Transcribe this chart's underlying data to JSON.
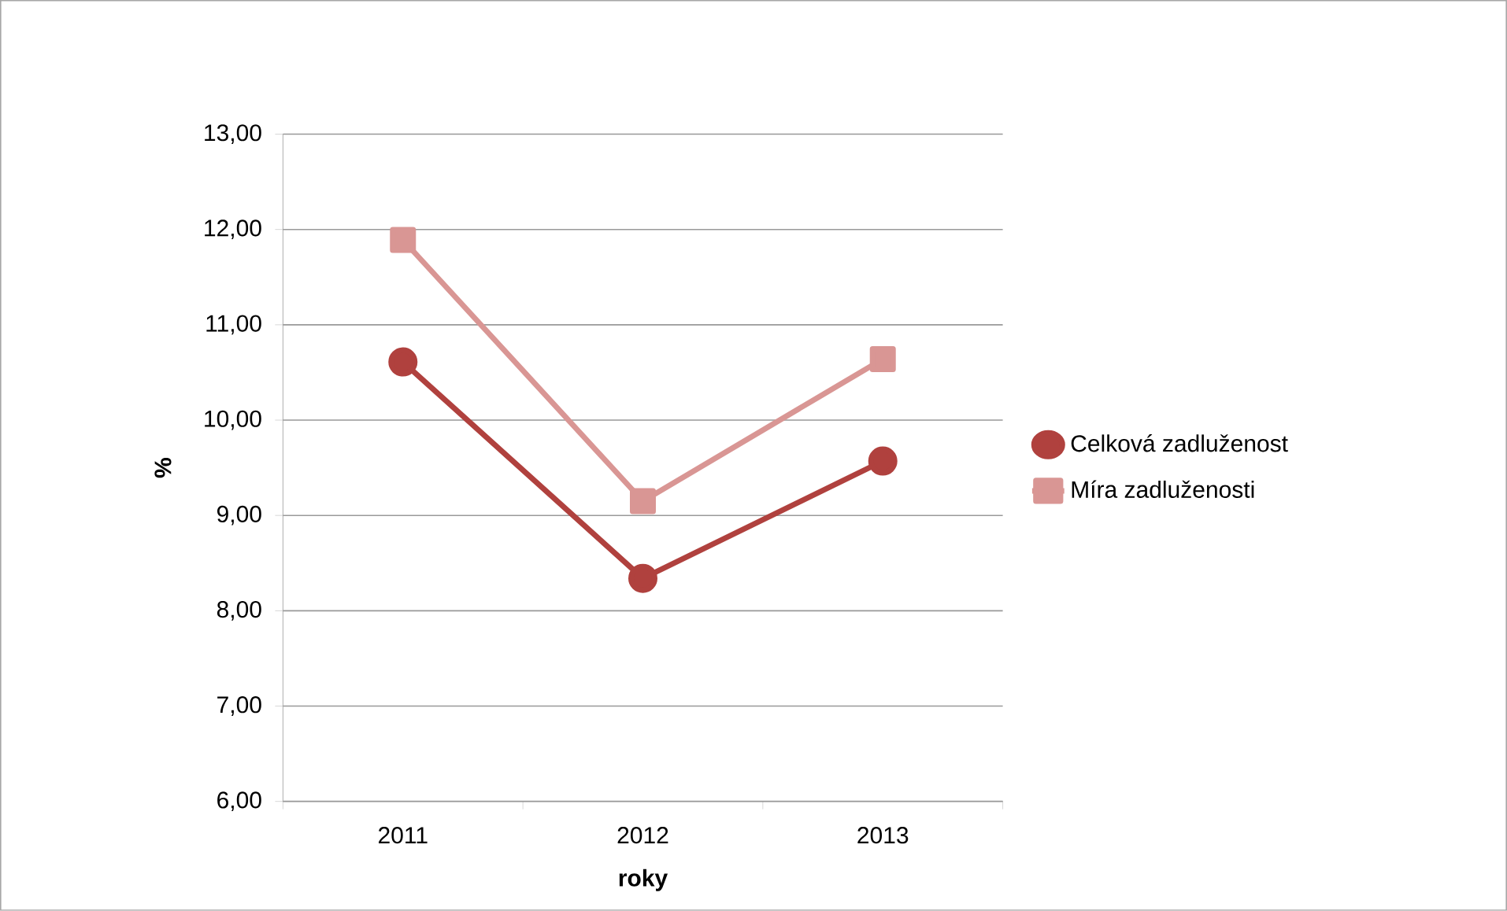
{
  "chart_data": {
    "type": "line",
    "xlabel": "roky",
    "ylabel": "%",
    "categories": [
      "2011",
      "2012",
      "2013"
    ],
    "series": [
      {
        "name": "Celková zadluženost",
        "color": "#b0413e",
        "values": [
          10.61,
          8.34,
          9.57
        ],
        "marker": "circle"
      },
      {
        "name": "Míra zadluženosti",
        "color": "#d99694",
        "values": [
          11.89,
          9.15,
          10.64
        ],
        "marker": "square"
      }
    ],
    "ylim": [
      6,
      13
    ],
    "yticks": [
      {
        "value": 6,
        "label": "6,00"
      },
      {
        "value": 7,
        "label": "7,00"
      },
      {
        "value": 8,
        "label": "8,00"
      },
      {
        "value": 9,
        "label": "9,00"
      },
      {
        "value": 10,
        "label": "10,00"
      },
      {
        "value": 11,
        "label": "11,00"
      },
      {
        "value": 12,
        "label": "12,00"
      },
      {
        "value": 13,
        "label": "13,00"
      }
    ],
    "grid": "y",
    "legend": "right",
    "line_style": "solid"
  }
}
